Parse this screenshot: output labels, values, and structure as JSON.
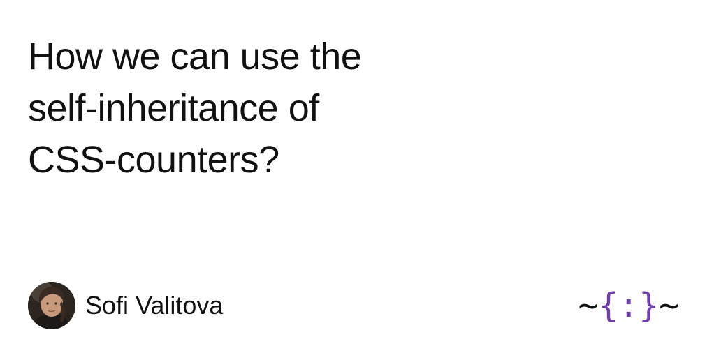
{
  "post": {
    "title_lines": [
      "How we can use the",
      "self-inheritance of",
      "CSS-counters?"
    ]
  },
  "author": {
    "name": "Sofi Valitova",
    "avatar_icon": "avatar-photo"
  },
  "logo": {
    "left": "~",
    "open": "{",
    "middle": ":",
    "close": "}",
    "right": "~",
    "accent_color": "#6e3fa8"
  },
  "colors": {
    "background": "#ffffff",
    "text": "#111111",
    "accent": "#6e3fa8"
  }
}
